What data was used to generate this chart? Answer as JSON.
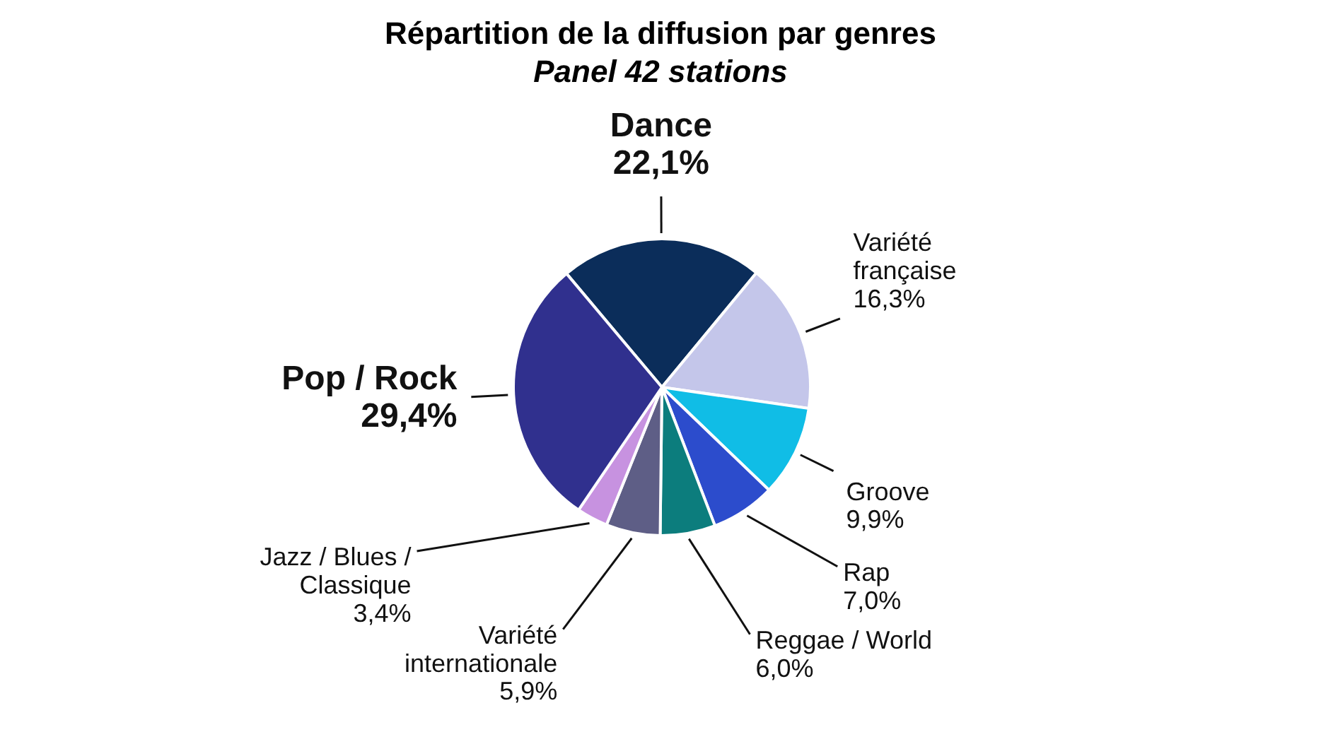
{
  "chart_data": {
    "type": "pie",
    "title": "Répartition de la diffusion par genres",
    "subtitle": "Panel 42 stations",
    "categories": [
      "Dance",
      "Variété française",
      "Groove",
      "Rap",
      "Reggae / World",
      "Variété internationale",
      "Jazz / Blues / Classique",
      "Pop / Rock"
    ],
    "values": [
      22.1,
      16.3,
      9.9,
      7.0,
      6.0,
      5.9,
      3.4,
      29.4
    ],
    "colors": [
      "#0b2d5a",
      "#c4c6ea",
      "#10bde6",
      "#2c4ccc",
      "#0c7d7d",
      "#5e5e86",
      "#c792e0",
      "#30308e"
    ],
    "value_labels": [
      "22,1%",
      "16,3%",
      "9,9%",
      "7,0%",
      "6,0%",
      "5,9%",
      "3,4%",
      "29,4%"
    ],
    "legend": false
  }
}
